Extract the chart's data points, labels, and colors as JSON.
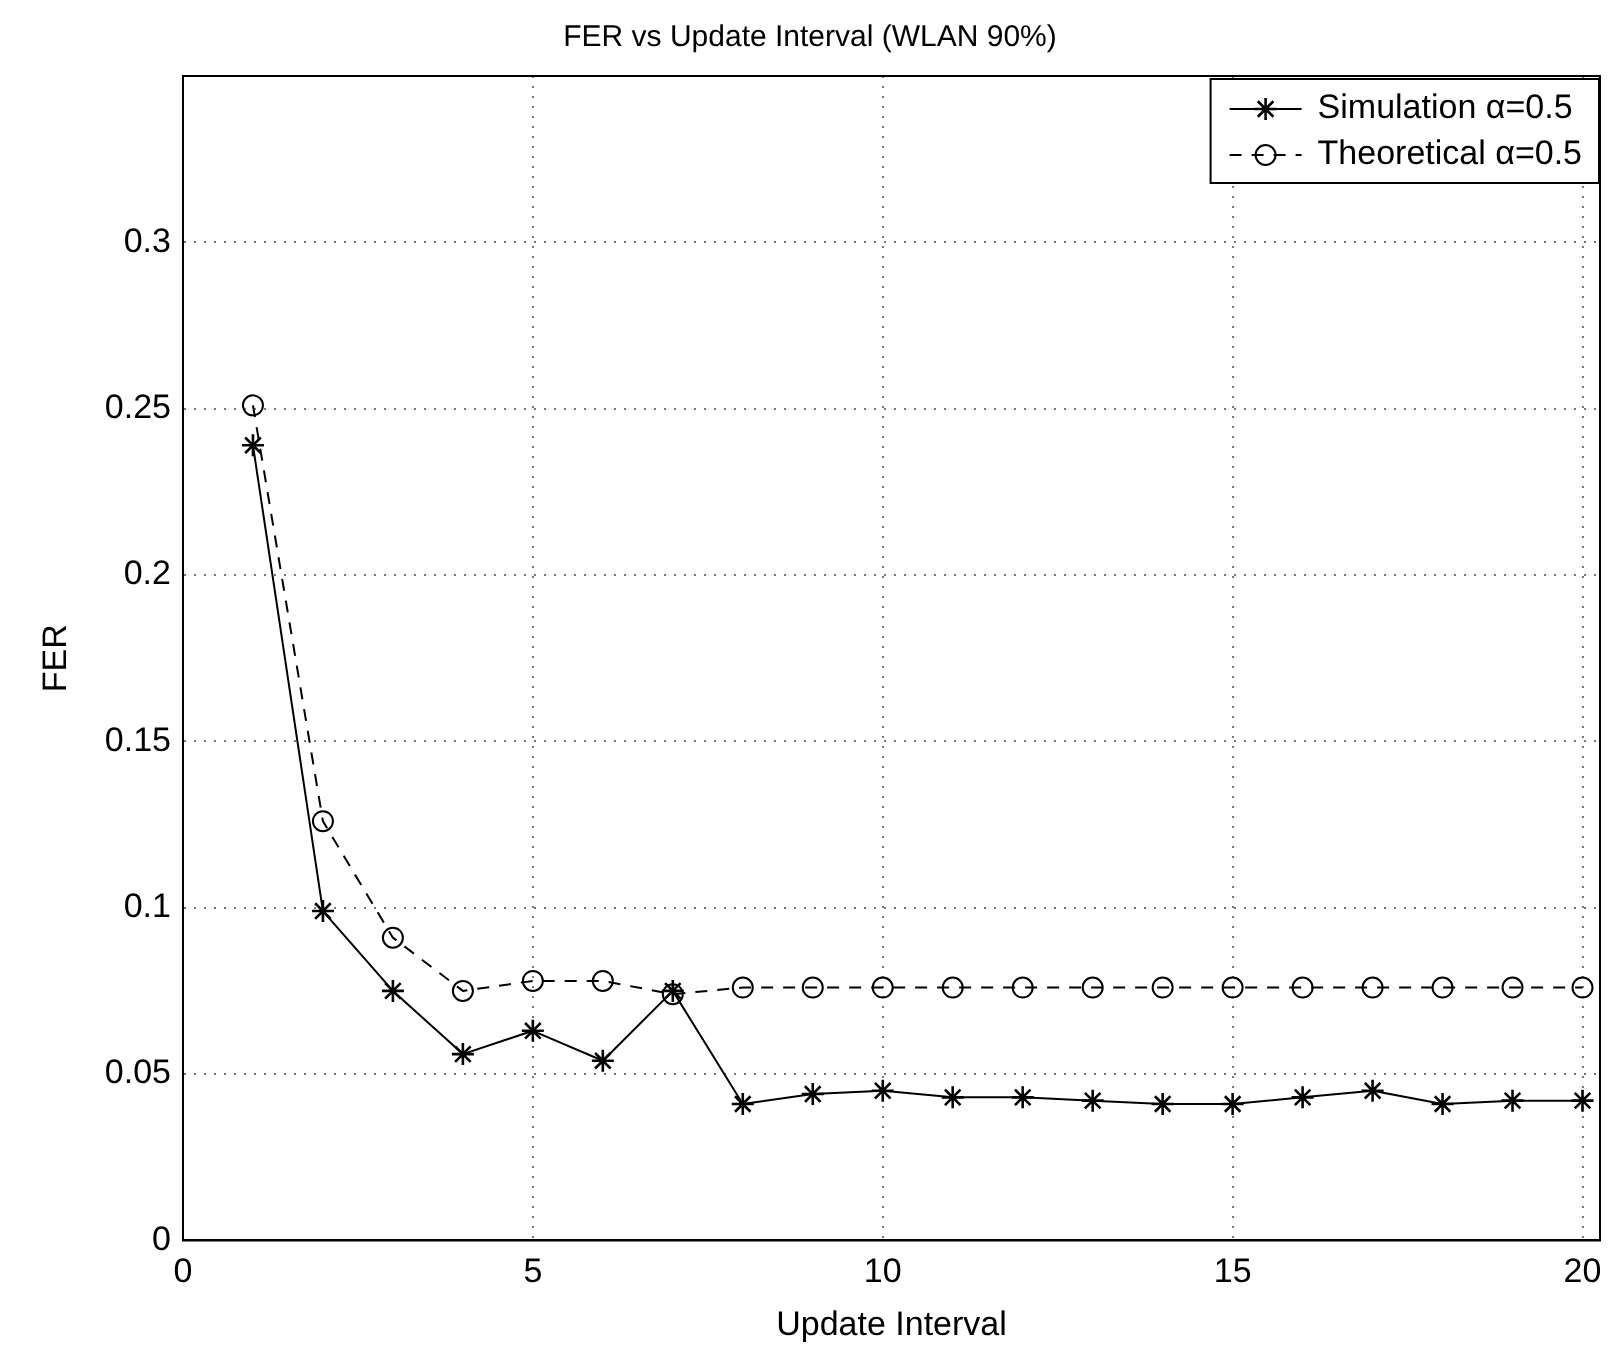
{
  "chart_data": {
    "type": "line",
    "title": "FER vs Update Interval (WLAN 90%)",
    "xlabel": "Update Interval",
    "ylabel": "FER",
    "x": [
      1,
      2,
      3,
      4,
      5,
      6,
      7,
      8,
      9,
      10,
      11,
      12,
      13,
      14,
      15,
      16,
      17,
      18,
      19,
      20
    ],
    "series": [
      {
        "name": "Simulation α=0.5",
        "color": "#000000",
        "marker": "star",
        "line_style": "solid",
        "values": [
          0.239,
          0.099,
          0.075,
          0.056,
          0.063,
          0.054,
          0.075,
          0.041,
          0.044,
          0.045,
          0.043,
          0.043,
          0.042,
          0.041,
          0.041,
          0.043,
          0.045,
          0.041,
          0.042,
          0.042
        ]
      },
      {
        "name": "Theoretical α=0.5",
        "color": "#000000",
        "marker": "circle",
        "line_style": "dashed",
        "values": [
          0.251,
          0.126,
          0.091,
          0.075,
          0.078,
          0.078,
          0.074,
          0.076,
          0.076,
          0.076,
          0.076,
          0.076,
          0.076,
          0.076,
          0.076,
          0.076,
          0.076,
          0.076,
          0.076,
          0.076
        ]
      }
    ],
    "xlim": [
      0,
      20.25
    ],
    "xticks": [
      0,
      5,
      10,
      15,
      20
    ],
    "ylim": [
      0,
      0.35
    ],
    "yticks": [
      0,
      0.05,
      0.1,
      0.15,
      0.2,
      0.25,
      0.3
    ],
    "grid": true,
    "legend": "top right"
  }
}
